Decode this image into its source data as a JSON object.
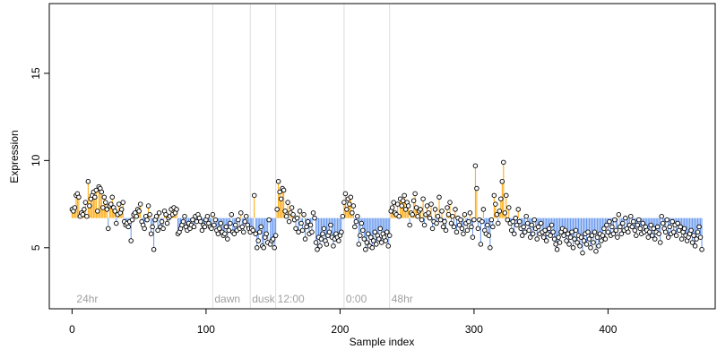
{
  "chart_data": {
    "type": "scatter",
    "title": "",
    "xlabel": "Sample index",
    "ylabel": "Expression",
    "xlim": [
      -17,
      480
    ],
    "ylim": [
      1.5,
      19.0
    ],
    "x_ticks": [
      0,
      100,
      200,
      300,
      400
    ],
    "y_ticks": [
      5,
      10,
      15
    ],
    "baseline": 6.7,
    "phase_markers": [
      {
        "x": 105,
        "label": "dawn"
      },
      {
        "x": 133,
        "label": "dusk"
      },
      {
        "x": 152,
        "label": "12:00"
      },
      {
        "x": 203,
        "label": "0:00"
      },
      {
        "x": 237,
        "label": "48hr"
      }
    ],
    "start_label": {
      "x": 2,
      "label": "24hr"
    },
    "colors": {
      "above": "#ffa500",
      "below": "#6495ed",
      "point_fill": "#ffffff",
      "point_stroke": "#000000",
      "marker_line": "#dcdcdc",
      "phase_text": "#a0a0a0"
    },
    "series": [
      {
        "values": [
          7.2,
          7.1,
          7.3,
          8.0,
          8.1,
          7.9,
          6.8,
          7.0,
          6.9,
          7.2,
          7.6,
          6.8,
          8.8,
          7.4,
          7.8,
          8.0,
          8.2,
          7.9,
          8.3,
          7.1,
          8.5,
          8.4,
          8.2,
          7.3,
          7.9,
          7.6,
          7.2,
          6.1,
          7.4,
          7.5,
          7.9,
          7.3,
          7.1,
          6.4,
          6.9,
          7.5,
          7.0,
          7.2,
          7.6,
          6.5,
          6.3,
          6.4,
          6.2,
          6.5,
          5.4,
          6.6,
          6.9,
          7.0,
          6.8,
          7.2,
          7.1,
          7.5,
          6.5,
          6.3,
          6.1,
          6.8,
          6.6,
          7.4,
          6.9,
          5.8,
          6.2,
          4.9,
          6.6,
          6.8,
          6.0,
          7.0,
          6.2,
          6.5,
          6.1,
          7.1,
          6.9,
          6.4,
          6.7,
          6.8,
          7.2,
          6.9,
          7.3,
          7.0,
          7.2,
          5.8,
          5.9,
          6.1,
          6.3,
          6.5,
          6.8,
          6.2,
          6.0,
          6.4,
          6.1,
          6.3,
          6.6,
          6.2,
          6.8,
          6.5,
          6.9,
          6.7,
          6.5,
          6.0,
          6.3,
          6.2,
          6.6,
          6.8,
          6.4,
          6.2,
          6.1,
          6.9,
          6.3,
          6.6,
          6.0,
          5.8,
          6.1,
          6.4,
          5.9,
          5.7,
          5.8,
          6.2,
          5.5,
          6.0,
          6.4,
          6.9,
          5.9,
          5.8,
          6.3,
          6.0,
          6.6,
          6.1,
          7.0,
          6.2,
          5.9,
          6.5,
          6.8,
          6.3,
          6.1,
          5.9,
          6.1,
          6.0,
          8.0,
          5.8,
          5.0,
          5.4,
          5.9,
          6.2,
          5.1,
          5.0,
          5.6,
          5.8,
          5.3,
          6.6,
          5.2,
          5.4,
          5.5,
          5.0,
          5.7,
          7.2,
          8.8,
          8.2,
          7.8,
          8.4,
          8.3,
          7.1,
          6.8,
          7.6,
          6.5,
          7.0,
          7.3,
          6.9,
          6.6,
          6.1,
          6.7,
          5.9,
          7.1,
          6.4,
          6.0,
          6.9,
          5.5,
          6.2,
          6.5,
          5.8,
          6.3,
          5.9,
          7.0,
          6.7,
          5.3,
          4.9,
          5.6,
          5.1,
          5.5,
          5.8,
          6.1,
          5.4,
          5.2,
          5.7,
          5.9,
          6.3,
          5.6,
          5.1,
          5.5,
          5.8,
          5.6,
          5.4,
          5.7,
          5.9,
          6.8,
          7.6,
          8.1,
          7.2,
          7.8,
          7.5,
          7.9,
          7.0,
          7.4,
          6.2,
          6.5,
          6.8,
          5.2,
          5.7,
          6.4,
          6.0,
          5.5,
          4.9,
          5.3,
          5.8,
          5.1,
          5.6,
          5.0,
          5.4,
          5.9,
          5.2,
          5.7,
          5.5,
          6.1,
          5.3,
          5.8,
          5.6,
          5.4,
          5.9,
          5.1,
          5.7,
          7.1,
          7.3,
          7.6,
          7.0,
          6.9,
          7.5,
          6.8,
          7.8,
          7.4,
          7.7,
          8.0,
          7.2,
          7.6,
          7.4,
          6.3,
          7.0,
          6.9,
          7.7,
          8.1,
          7.3,
          6.8,
          7.1,
          7.2,
          6.6,
          7.8,
          6.3,
          6.9,
          7.4,
          7.0,
          6.7,
          7.5,
          6.1,
          6.5,
          7.2,
          6.4,
          6.8,
          7.9,
          6.6,
          7.1,
          6.2,
          6.5,
          6.0,
          7.3,
          6.9,
          7.6,
          6.4,
          6.8,
          6.2,
          7.2,
          5.9,
          6.7,
          6.3,
          6.6,
          6.1,
          5.8,
          6.9,
          6.4,
          6.0,
          6.5,
          7.0,
          6.2,
          5.6,
          6.6,
          9.7,
          8.4,
          6.1,
          6.6,
          5.2,
          6.5,
          7.2,
          6.0,
          5.8,
          6.3,
          5.7,
          5.0,
          6.6,
          6.2,
          8.0,
          7.5,
          6.9,
          6.4,
          7.1,
          7.8,
          8.8,
          9.9,
          7.0,
          8.0,
          6.6,
          7.3,
          6.4,
          6.0,
          6.5,
          5.8,
          6.7,
          6.3,
          7.2,
          6.5,
          6.1,
          5.7,
          6.2,
          5.9,
          6.8,
          6.4,
          6.0,
          5.6,
          6.3,
          5.8,
          6.6,
          6.1,
          5.5,
          6.2,
          5.8,
          6.4,
          5.9,
          5.6,
          6.0,
          5.4,
          5.8,
          6.1,
          5.7,
          6.3,
          5.9,
          5.5,
          5.2,
          4.9,
          5.6,
          5.3,
          5.9,
          6.1,
          5.7,
          6.0,
          5.4,
          5.8,
          5.2,
          5.6,
          5.9,
          5.0,
          5.5,
          6.0,
          5.3,
          5.7,
          5.1,
          5.6,
          4.7,
          5.4,
          5.8,
          5.2,
          5.9,
          5.5,
          5.0,
          5.7,
          5.3,
          5.9,
          4.8,
          5.6,
          5.1,
          5.8,
          5.4,
          5.7,
          6.1,
          5.5,
          6.3,
          5.9,
          6.5,
          5.7,
          6.2,
          5.8,
          6.6,
          6.0,
          5.6,
          6.9,
          6.2,
          5.8,
          6.4,
          6.0,
          6.7,
          6.1,
          5.9,
          6.3,
          6.8,
          6.2,
          6.5,
          6.0,
          5.7,
          6.3,
          6.6,
          6.1,
          5.8,
          6.4,
          5.9,
          6.2,
          6.0,
          5.6,
          5.9,
          6.3,
          5.7,
          6.1,
          5.5,
          5.9,
          6.2,
          5.8,
          5.3,
          6.8,
          6.4,
          6.1,
          5.9,
          6.6,
          5.6,
          6.2,
          5.8,
          6.5,
          5.9,
          6.3,
          5.7,
          6.4,
          6.0,
          6.2,
          5.5,
          5.9,
          6.1,
          5.7,
          5.4,
          5.6,
          5.8,
          6.0,
          5.3,
          5.7,
          5.1,
          5.5,
          5.9,
          6.2,
          5.6,
          4.9
        ]
      }
    ]
  }
}
